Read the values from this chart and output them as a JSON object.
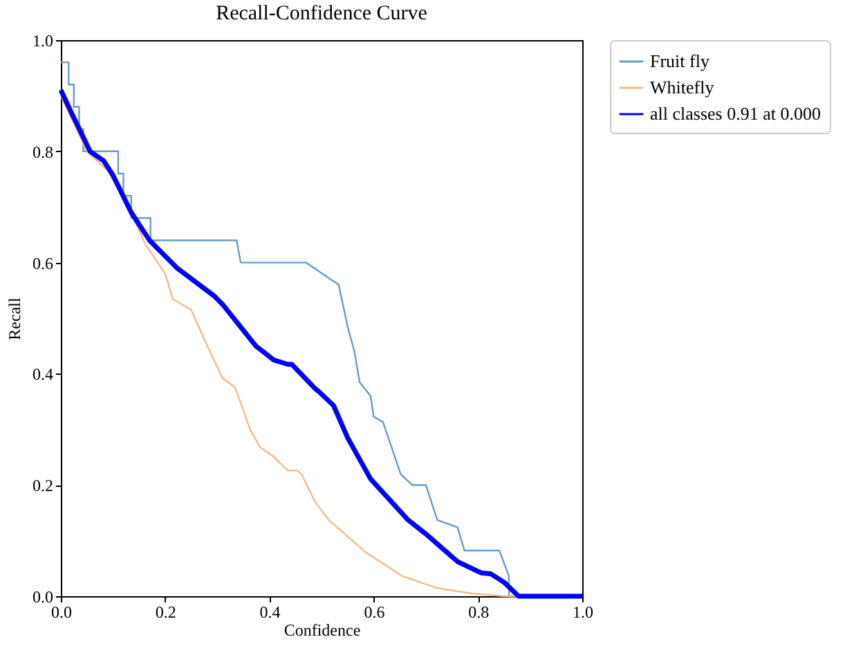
{
  "chart_data": {
    "type": "line",
    "title": "Recall-Confidence Curve",
    "xlabel": "Confidence",
    "ylabel": "Recall",
    "xlim": [
      0,
      1
    ],
    "ylim": [
      0,
      1
    ],
    "xticks": [
      {
        "value": 0,
        "label": "0.0"
      },
      {
        "value": 0.2,
        "label": "0.2"
      },
      {
        "value": 0.4,
        "label": "0.4"
      },
      {
        "value": 0.6,
        "label": "0.6"
      },
      {
        "value": 0.8,
        "label": "0.8"
      },
      {
        "value": 1,
        "label": "1.0"
      }
    ],
    "yticks": [
      {
        "value": 0,
        "label": "0.0"
      },
      {
        "value": 0.2,
        "label": "0.2"
      },
      {
        "value": 0.4,
        "label": "0.4"
      },
      {
        "value": 0.6,
        "label": "0.6"
      },
      {
        "value": 0.8,
        "label": "0.8"
      },
      {
        "value": 1,
        "label": "1.0"
      }
    ],
    "grid": false,
    "legend": "top right",
    "marker": "none",
    "line_style": "solid",
    "series": [
      {
        "name": "Fruit fly",
        "color": "#6a9bc3",
        "x": [
          0,
          0.015,
          0.015,
          0.025,
          0.025,
          0.035,
          0.035,
          0.043,
          0.043,
          0.11,
          0.11,
          0.12,
          0.12,
          0.135,
          0.135,
          0.172,
          0.172,
          0.337,
          0.345,
          0.47,
          0.533,
          0.55,
          0.563,
          0.573,
          0.594,
          0.6,
          0.618,
          0.652,
          0.674,
          0.7,
          0.722,
          0.761,
          0.774,
          0.841,
          0.859,
          0.86,
          1.0
        ],
        "values": [
          0.96,
          0.96,
          0.92,
          0.92,
          0.88,
          0.88,
          0.84,
          0.84,
          0.8,
          0.8,
          0.76,
          0.76,
          0.72,
          0.72,
          0.68,
          0.68,
          0.64,
          0.64,
          0.6,
          0.6,
          0.56,
          0.485,
          0.44,
          0.385,
          0.36,
          0.323,
          0.313,
          0.219,
          0.2,
          0.2,
          0.137,
          0.124,
          0.082,
          0.082,
          0.037,
          0,
          0
        ]
      },
      {
        "name": "Whitefly",
        "color": "#f4b98a",
        "x": [
          0,
          0.02,
          0.05,
          0.09,
          0.13,
          0.162,
          0.2,
          0.215,
          0.25,
          0.276,
          0.31,
          0.334,
          0.363,
          0.382,
          0.408,
          0.435,
          0.453,
          0.462,
          0.488,
          0.515,
          0.586,
          0.655,
          0.72,
          0.788,
          0.85,
          1.0
        ],
        "values": [
          0.9,
          0.86,
          0.8,
          0.765,
          0.7,
          0.633,
          0.58,
          0.534,
          0.515,
          0.46,
          0.392,
          0.376,
          0.3,
          0.268,
          0.251,
          0.226,
          0.226,
          0.219,
          0.169,
          0.136,
          0.078,
          0.036,
          0.015,
          0.005,
          0,
          0
        ]
      },
      {
        "name": "all classes 0.91 at 0.000",
        "color": "#0000ff",
        "x": [
          0,
          0.02,
          0.056,
          0.082,
          0.1,
          0.135,
          0.17,
          0.223,
          0.294,
          0.31,
          0.374,
          0.408,
          0.435,
          0.443,
          0.488,
          0.496,
          0.523,
          0.55,
          0.594,
          0.666,
          0.7,
          0.761,
          0.806,
          0.825,
          0.85,
          0.878,
          1.0
        ],
        "values": [
          0.91,
          0.87,
          0.8,
          0.783,
          0.757,
          0.69,
          0.64,
          0.59,
          0.54,
          0.525,
          0.45,
          0.425,
          0.417,
          0.417,
          0.373,
          0.367,
          0.343,
          0.285,
          0.211,
          0.137,
          0.112,
          0.062,
          0.042,
          0.04,
          0.025,
          0,
          0
        ]
      }
    ]
  }
}
